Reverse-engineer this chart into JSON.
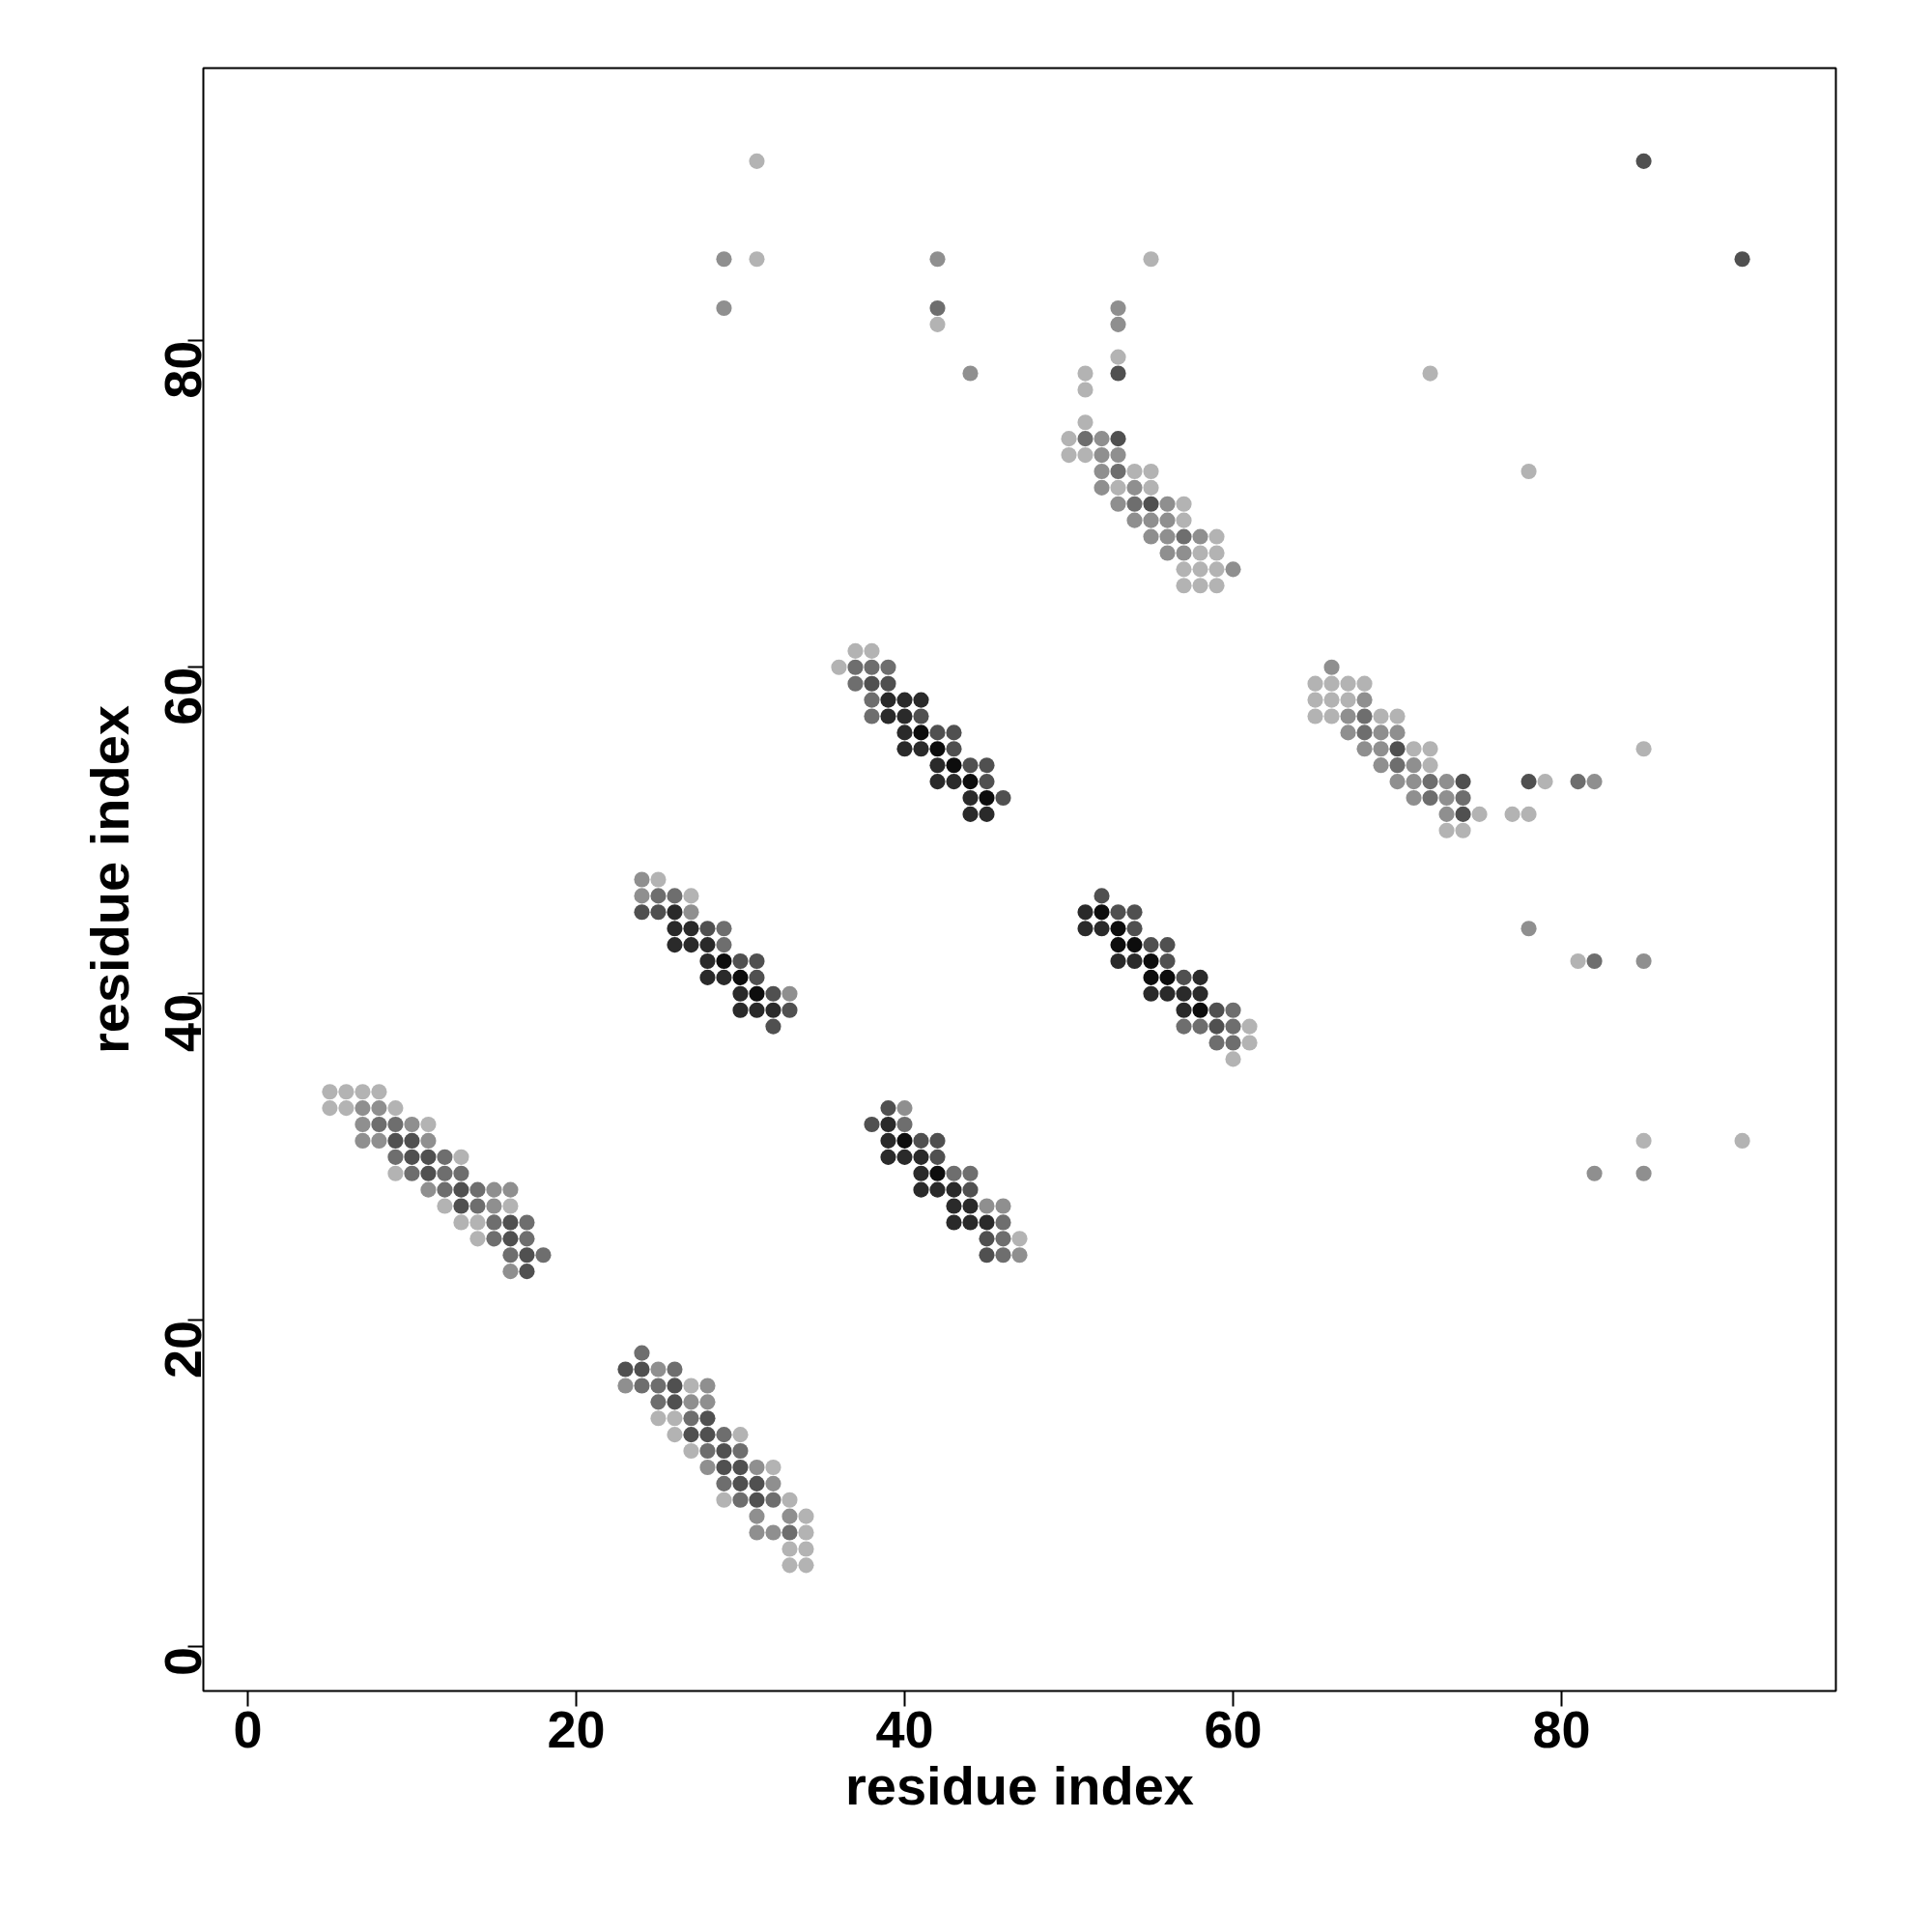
{
  "chart_data": {
    "type": "scatter",
    "xlabel": "residue index",
    "ylabel": "residue index",
    "xlim": [
      -2.7,
      96.7
    ],
    "ylim": [
      -2.7,
      96.7
    ],
    "xticks": [
      0,
      20,
      40,
      60,
      80
    ],
    "yticks": [
      0,
      20,
      40,
      60,
      80
    ],
    "grid": false,
    "marker": "circle",
    "series": [
      {
        "color": "#b3b3b3",
        "x": [
          5,
          6,
          7,
          8,
          5,
          6,
          9,
          11,
          13,
          9,
          12,
          16,
          13,
          14,
          14,
          27,
          25,
          26,
          26,
          30,
          27,
          32,
          29,
          33,
          34,
          34,
          33,
          34,
          33,
          34,
          25,
          27,
          47,
          37,
          38,
          36,
          61,
          61,
          60,
          31,
          31,
          55,
          42,
          53,
          51,
          51,
          51,
          50,
          50,
          51,
          54,
          55,
          53,
          55,
          57,
          57,
          59,
          58,
          59,
          57,
          58,
          59,
          57,
          58,
          59,
          65,
          66,
          67,
          68,
          65,
          66,
          67,
          65,
          66,
          69,
          70,
          71,
          72,
          72,
          79,
          75,
          77,
          78,
          73,
          74,
          85,
          81,
          85,
          91,
          72,
          78
        ],
        "values": [
          34,
          34,
          34,
          34,
          33,
          33,
          33,
          32,
          30,
          29,
          27,
          27,
          26,
          26,
          25,
          16,
          14,
          14,
          13,
          13,
          12,
          11,
          9,
          9,
          8,
          7,
          6,
          6,
          5,
          5,
          47,
          46,
          25,
          61,
          61,
          60,
          38,
          37,
          36,
          91,
          85,
          85,
          81,
          79,
          78,
          77,
          75,
          74,
          73,
          73,
          72,
          72,
          71,
          71,
          70,
          69,
          68,
          67,
          67,
          66,
          66,
          66,
          65,
          65,
          65,
          59,
          59,
          59,
          59,
          58,
          58,
          58,
          57,
          57,
          57,
          57,
          55,
          55,
          54,
          53,
          51,
          51,
          51,
          50,
          50,
          55,
          42,
          31,
          31,
          78,
          72
        ]
      },
      {
        "color": "#8f8f8f",
        "x": [
          7,
          8,
          7,
          10,
          7,
          8,
          11,
          11,
          15,
          16,
          15,
          16,
          25,
          23,
          27,
          28,
          28,
          28,
          31,
          32,
          31,
          33,
          31,
          32,
          24,
          24,
          27,
          33,
          40,
          45,
          46,
          47,
          29,
          42,
          29,
          53,
          53,
          44,
          52,
          52,
          53,
          52,
          52,
          54,
          53,
          56,
          54,
          55,
          56,
          55,
          56,
          58,
          56,
          57,
          60,
          66,
          68,
          67,
          67,
          69,
          70,
          68,
          69,
          69,
          71,
          70,
          71,
          73,
          82,
          71,
          73,
          73,
          78,
          85,
          82,
          85
        ],
        "values": [
          33,
          33,
          32,
          32,
          31,
          31,
          31,
          28,
          28,
          28,
          27,
          23,
          17,
          16,
          15,
          15,
          16,
          11,
          11,
          10,
          8,
          8,
          7,
          7,
          47,
          46,
          45,
          40,
          33,
          27,
          27,
          24,
          85,
          85,
          82,
          82,
          81,
          78,
          74,
          73,
          73,
          72,
          71,
          71,
          70,
          70,
          69,
          69,
          69,
          68,
          68,
          68,
          67,
          67,
          66,
          60,
          58,
          57,
          56,
          56,
          56,
          55,
          55,
          54,
          54,
          53,
          53,
          53,
          53,
          52,
          52,
          51,
          44,
          42,
          29,
          29
        ]
      },
      {
        "color": "#6e6e6e",
        "x": [
          8,
          9,
          9,
          12,
          10,
          12,
          13,
          12,
          14,
          14,
          15,
          17,
          15,
          17,
          16,
          18,
          24,
          26,
          24,
          25,
          25,
          27,
          29,
          28,
          30,
          29,
          30,
          32,
          33,
          25,
          26,
          29,
          29,
          40,
          43,
          44,
          46,
          46,
          46,
          37,
          38,
          39,
          37,
          38,
          38,
          60,
          57,
          58,
          60,
          59,
          60,
          42,
          51,
          53,
          54,
          57,
          68,
          68,
          70,
          72,
          72,
          74,
          81,
          82
        ],
        "values": [
          32,
          32,
          30,
          30,
          29,
          29,
          29,
          28,
          28,
          27,
          26,
          26,
          25,
          25,
          24,
          24,
          18,
          17,
          16,
          16,
          15,
          14,
          13,
          12,
          12,
          10,
          9,
          9,
          7,
          46,
          46,
          44,
          43,
          32,
          29,
          29,
          26,
          25,
          24,
          60,
          60,
          60,
          59,
          58,
          57,
          39,
          38,
          38,
          38,
          37,
          37,
          82,
          74,
          72,
          70,
          68,
          57,
          56,
          54,
          53,
          52,
          52,
          53,
          42
        ]
      },
      {
        "color": "#505050",
        "x": [
          9,
          10,
          10,
          11,
          11,
          13,
          13,
          16,
          16,
          17,
          17,
          23,
          24,
          26,
          26,
          28,
          27,
          28,
          29,
          29,
          30,
          30,
          31,
          31,
          24,
          25,
          28,
          30,
          31,
          31,
          32,
          33,
          32,
          39,
          38,
          41,
          42,
          42,
          44,
          45,
          45,
          38,
          39,
          41,
          42,
          43,
          43,
          44,
          45,
          45,
          46,
          52,
          53,
          54,
          54,
          55,
          56,
          56,
          57,
          59,
          59,
          53,
          85,
          91,
          53,
          55,
          70,
          74,
          78,
          74
        ],
        "values": [
          31,
          31,
          30,
          30,
          29,
          28,
          27,
          26,
          25,
          24,
          23,
          17,
          17,
          16,
          15,
          14,
          13,
          13,
          12,
          11,
          11,
          10,
          10,
          9,
          45,
          45,
          44,
          42,
          42,
          41,
          40,
          39,
          38,
          33,
          32,
          31,
          31,
          30,
          28,
          25,
          24,
          59,
          59,
          57,
          56,
          56,
          55,
          54,
          54,
          53,
          52,
          46,
          45,
          45,
          44,
          43,
          43,
          42,
          41,
          39,
          38,
          78,
          91,
          85,
          74,
          70,
          55,
          53,
          53,
          51
        ]
      },
      {
        "color": "#2a2a2a",
        "x": [
          26,
          26,
          27,
          26,
          27,
          28,
          28,
          28,
          29,
          30,
          30,
          31,
          32,
          39,
          39,
          39,
          40,
          41,
          41,
          41,
          42,
          43,
          43,
          44,
          43,
          44,
          45,
          39,
          40,
          41,
          39,
          40,
          40,
          40,
          41,
          42,
          42,
          43,
          44,
          44,
          45,
          51,
          51,
          52,
          53,
          54,
          58,
          55,
          56,
          57,
          58,
          57
        ],
        "values": [
          45,
          44,
          44,
          43,
          43,
          43,
          42,
          41,
          41,
          40,
          39,
          39,
          39,
          32,
          31,
          30,
          30,
          30,
          29,
          28,
          28,
          28,
          27,
          27,
          26,
          26,
          26,
          58,
          58,
          58,
          57,
          57,
          56,
          55,
          55,
          54,
          53,
          53,
          52,
          51,
          51,
          45,
          44,
          44,
          42,
          42,
          41,
          40,
          40,
          40,
          40,
          39
        ]
      },
      {
        "color": "#0d0d0d",
        "x": [
          29,
          30,
          31,
          40,
          42,
          41,
          42,
          43,
          44,
          45,
          52,
          53,
          53,
          54,
          55,
          55,
          56,
          58
        ],
        "values": [
          42,
          41,
          40,
          31,
          29,
          56,
          55,
          54,
          53,
          52,
          45,
          44,
          43,
          43,
          42,
          41,
          41,
          39
        ]
      }
    ]
  }
}
